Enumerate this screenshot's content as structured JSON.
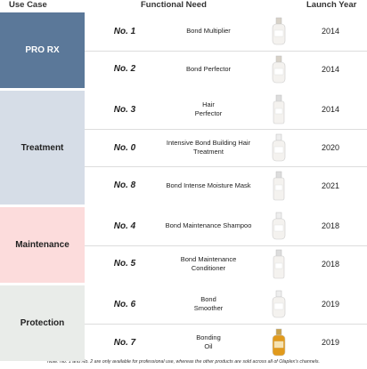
{
  "header": {
    "use_case": "Use Case",
    "functional_need": "Functional Need",
    "launch_year": "Launch Year"
  },
  "groups": [
    {
      "name": "PRO RX",
      "rows": [
        {
          "no": "No. 1",
          "need": "Bond Multiplier",
          "year": 2014
        },
        {
          "no": "No. 2",
          "need": "Bond Perfector",
          "year": 2014
        }
      ]
    },
    {
      "name": "Treatment",
      "rows": [
        {
          "no": "No. 3",
          "need": "Hair\nPerfector",
          "year": 2014
        },
        {
          "no": "No. 0",
          "need": "Intensive Bond Building Hair\nTreatment",
          "year": 2020
        },
        {
          "no": "No. 8",
          "need": "Bond Intense Moisture Mask",
          "year": 2021
        }
      ]
    },
    {
      "name": "Maintenance",
      "rows": [
        {
          "no": "No. 4",
          "need": "Bond Maintenance Shampoo",
          "year": 2018
        },
        {
          "no": "No. 5",
          "need": "Bond Maintenance\nConditioner",
          "year": 2018
        }
      ]
    },
    {
      "name": "Protection",
      "rows": [
        {
          "no": "No. 6",
          "need": "Bond\nSmoother",
          "year": 2019
        },
        {
          "no": "No. 7",
          "need": "Bonding\nOil",
          "year": 2019
        }
      ]
    }
  ],
  "note": "Note: No. 1 and No. 2 are only available for professional use, whereas the other products are sold across all of Olaplex's channels."
}
